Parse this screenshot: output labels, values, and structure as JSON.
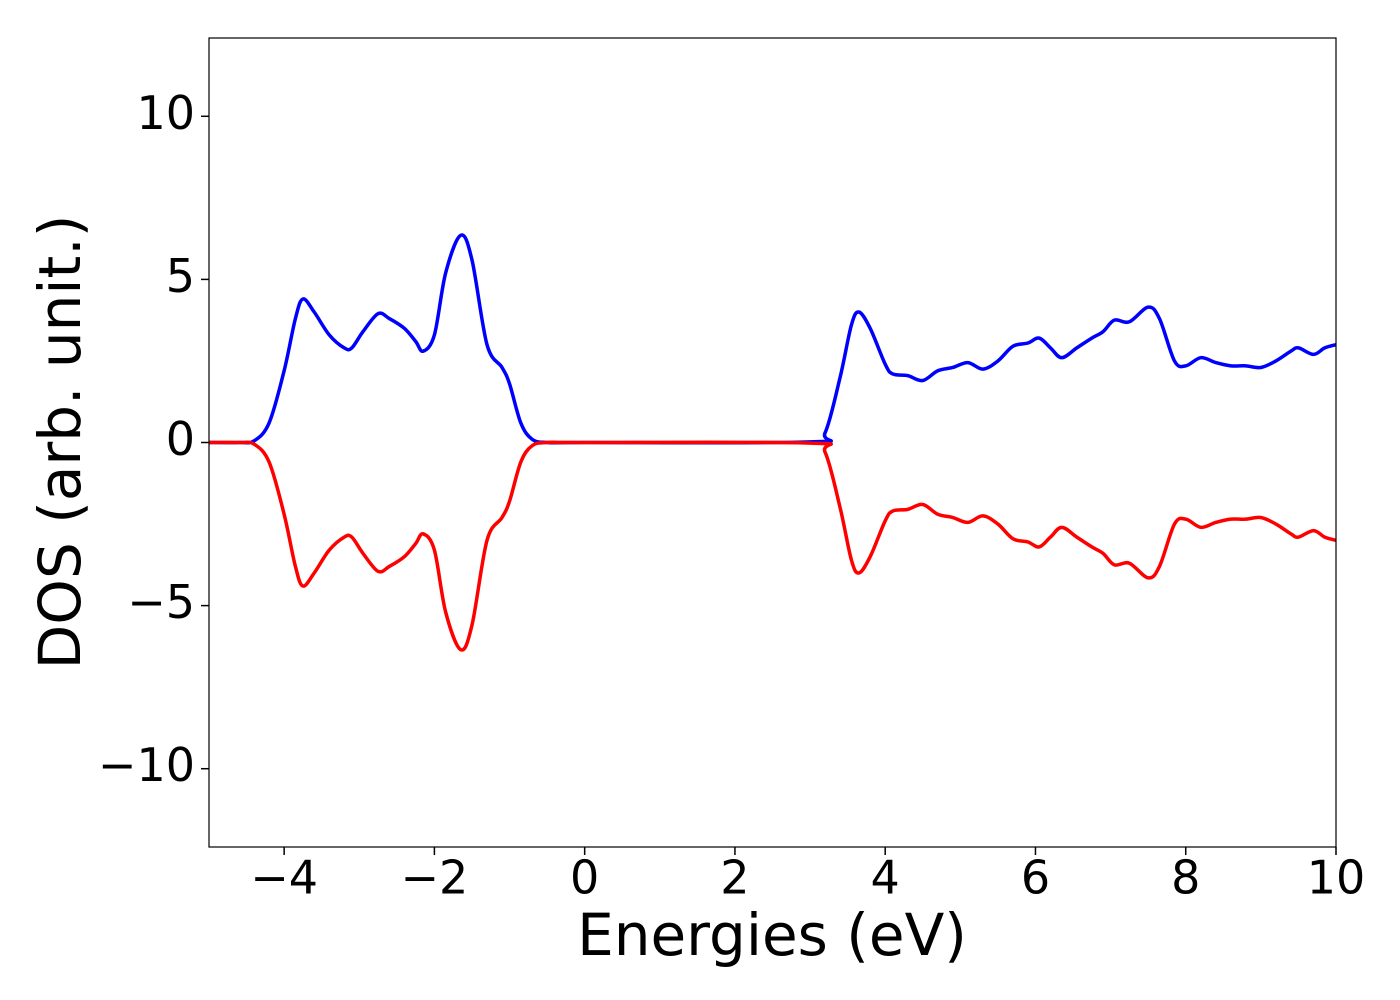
{
  "chart_data": {
    "type": "line",
    "xlabel": "Energies (eV)",
    "ylabel": "DOS (arb. unit.)",
    "x": [
      -5,
      -4.6,
      -4.4,
      -4.2,
      -4.0,
      -3.85,
      -3.75,
      -3.6,
      -3.4,
      -3.2,
      -3.1,
      -2.95,
      -2.75,
      -2.6,
      -2.4,
      -2.25,
      -2.15,
      -2.0,
      -1.85,
      -1.65,
      -1.5,
      -1.3,
      -1.1,
      -1.0,
      -0.85,
      -0.7,
      -0.5,
      0,
      3.0,
      3.2,
      3.4,
      3.55,
      3.65,
      3.8,
      4.0,
      4.1,
      4.3,
      4.5,
      4.7,
      4.9,
      5.1,
      5.3,
      5.5,
      5.7,
      5.9,
      6.05,
      6.2,
      6.35,
      6.55,
      6.75,
      6.9,
      7.05,
      7.25,
      7.5,
      7.65,
      7.85,
      8.0,
      8.2,
      8.4,
      8.6,
      8.8,
      9.0,
      9.2,
      9.4,
      9.5,
      9.7,
      9.85,
      10.0
    ],
    "series": [
      {
        "color": "#0000ff",
        "values": [
          0,
          0,
          0.05,
          0.6,
          2.2,
          3.8,
          4.4,
          4.0,
          3.3,
          2.9,
          2.9,
          3.4,
          3.95,
          3.8,
          3.5,
          3.1,
          2.8,
          3.3,
          5.2,
          6.35,
          5.6,
          3.0,
          2.3,
          1.8,
          0.6,
          0.1,
          0,
          0,
          0.02,
          0.3,
          2.0,
          3.6,
          4.0,
          3.5,
          2.4,
          2.1,
          2.05,
          1.9,
          2.2,
          2.3,
          2.45,
          2.25,
          2.5,
          2.95,
          3.05,
          3.2,
          2.9,
          2.6,
          2.9,
          3.2,
          3.4,
          3.75,
          3.7,
          4.15,
          3.8,
          2.5,
          2.35,
          2.6,
          2.45,
          2.35,
          2.35,
          2.3,
          2.5,
          2.8,
          2.9,
          2.7,
          2.9,
          3.0
        ]
      },
      {
        "color": "#ff0000",
        "values": [
          0,
          0,
          -0.05,
          -0.6,
          -2.2,
          -3.8,
          -4.4,
          -4.0,
          -3.3,
          -2.9,
          -2.9,
          -3.4,
          -3.95,
          -3.8,
          -3.5,
          -3.1,
          -2.8,
          -3.3,
          -5.2,
          -6.35,
          -5.6,
          -3.0,
          -2.3,
          -1.8,
          -0.6,
          -0.1,
          0,
          0,
          -0.02,
          -0.3,
          -2.0,
          -3.6,
          -4.0,
          -3.5,
          -2.4,
          -2.1,
          -2.05,
          -1.9,
          -2.2,
          -2.3,
          -2.45,
          -2.25,
          -2.5,
          -2.95,
          -3.05,
          -3.2,
          -2.9,
          -2.6,
          -2.9,
          -3.2,
          -3.4,
          -3.75,
          -3.7,
          -4.15,
          -3.8,
          -2.5,
          -2.35,
          -2.6,
          -2.45,
          -2.35,
          -2.35,
          -2.3,
          -2.5,
          -2.8,
          -2.9,
          -2.7,
          -2.9,
          -3.0
        ]
      }
    ],
    "xlim": [
      -5,
      10
    ],
    "ylim": [
      -12.4,
      12.4
    ],
    "xticks": [
      {
        "value": -4,
        "label": "−4"
      },
      {
        "value": -2,
        "label": "−2"
      },
      0,
      2,
      4,
      6,
      8,
      10
    ],
    "yticks": [
      {
        "value": -10,
        "label": "−10"
      },
      {
        "value": -5,
        "label": "−5"
      },
      0,
      5,
      10
    ]
  }
}
